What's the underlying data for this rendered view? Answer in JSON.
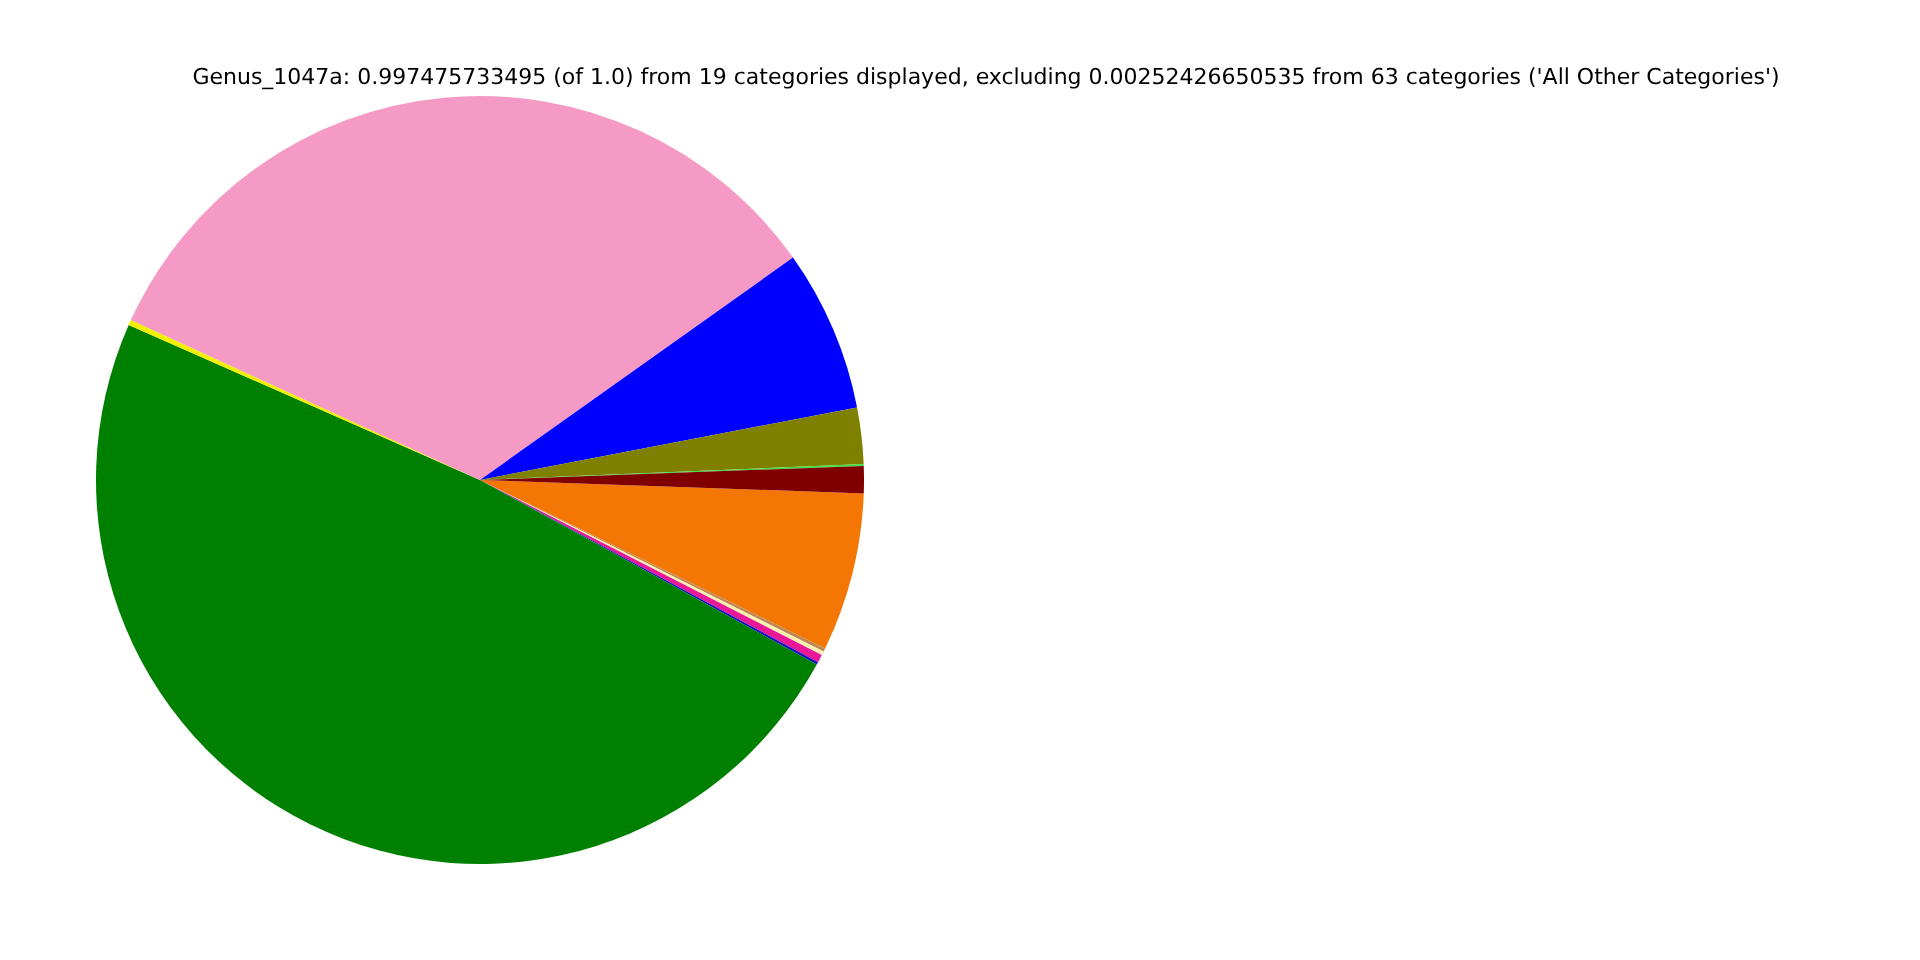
{
  "chart_data": {
    "type": "pie",
    "title": "Genus_1047a: 0.997475733495 (of 1.0) from 19 categories displayed, excluding 0.00252426650535 from 63 categories ('All Other Categories')",
    "categories": [
      null,
      null,
      null,
      null,
      null,
      null,
      null,
      null,
      null,
      null,
      null,
      null
    ],
    "values": [
      6.67,
      0.14,
      0.17,
      0.33,
      0.11,
      48.64,
      0.22,
      33.33,
      6.81,
      2.36,
      0.08,
      1.14
    ],
    "colors": [
      "#f47604",
      "#c08850",
      "#f8f0b0",
      "#e81898",
      "#1010c0",
      "#008000",
      "#f0f000",
      "#f49ac4",
      "#0000ff",
      "#808000",
      "#40e040",
      "#800000"
    ],
    "legend": false
  }
}
